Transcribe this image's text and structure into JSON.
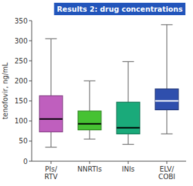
{
  "chart_data": {
    "type": "box",
    "title": "Results 2: drug concentrations",
    "ylabel": "tenofovir, ng/mL",
    "ylim": [
      0,
      350
    ],
    "yticks": [
      0,
      50,
      100,
      150,
      200,
      250,
      300,
      350
    ],
    "categories": [
      "PIs/\nRTV",
      "NNRTIs",
      "INIs",
      "ELV/\nCOBI"
    ],
    "values": [
      {
        "whislo": 35,
        "q1": 73,
        "med": 105,
        "q3": 163,
        "whishi": 305
      },
      {
        "whislo": 55,
        "q1": 78,
        "med": 93,
        "q3": 125,
        "whishi": 200
      },
      {
        "whislo": 42,
        "q1": 68,
        "med": 83,
        "q3": 147,
        "whishi": 248
      },
      {
        "whislo": 68,
        "q1": 128,
        "med": 150,
        "q3": 180,
        "whishi": 340
      }
    ],
    "colors": [
      "#bf5fbe",
      "#46c232",
      "#1aaa7a",
      "#2f4fad"
    ],
    "grid": false
  }
}
